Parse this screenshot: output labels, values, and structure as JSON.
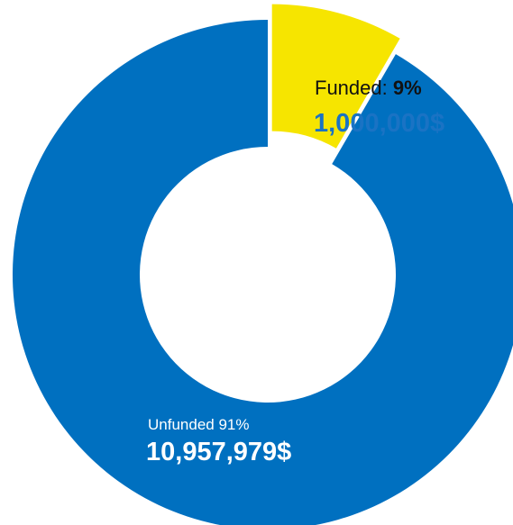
{
  "chart_data": {
    "type": "pie",
    "donut": true,
    "exploded_slice": "Funded",
    "start_angle_deg": 0,
    "title": "",
    "slices": [
      {
        "name": "Funded",
        "percent_label": "9%",
        "value": 1000000,
        "amount_label": "1,000,000$",
        "color": "#f6e500",
        "label_color": "#1a73c4"
      },
      {
        "name": "Unfunded",
        "percent_label": "91%",
        "value": 10957979,
        "amount_label": "10,957,979$",
        "color": "#0070c0",
        "label_color": "#ffffff"
      }
    ],
    "labels": {
      "funded_prefix": "Funded:",
      "funded_pct": "9%",
      "funded_amount": "1,000,000$",
      "unfunded_text": "Unfunded 91%",
      "unfunded_amount": "10,957,979$"
    }
  }
}
